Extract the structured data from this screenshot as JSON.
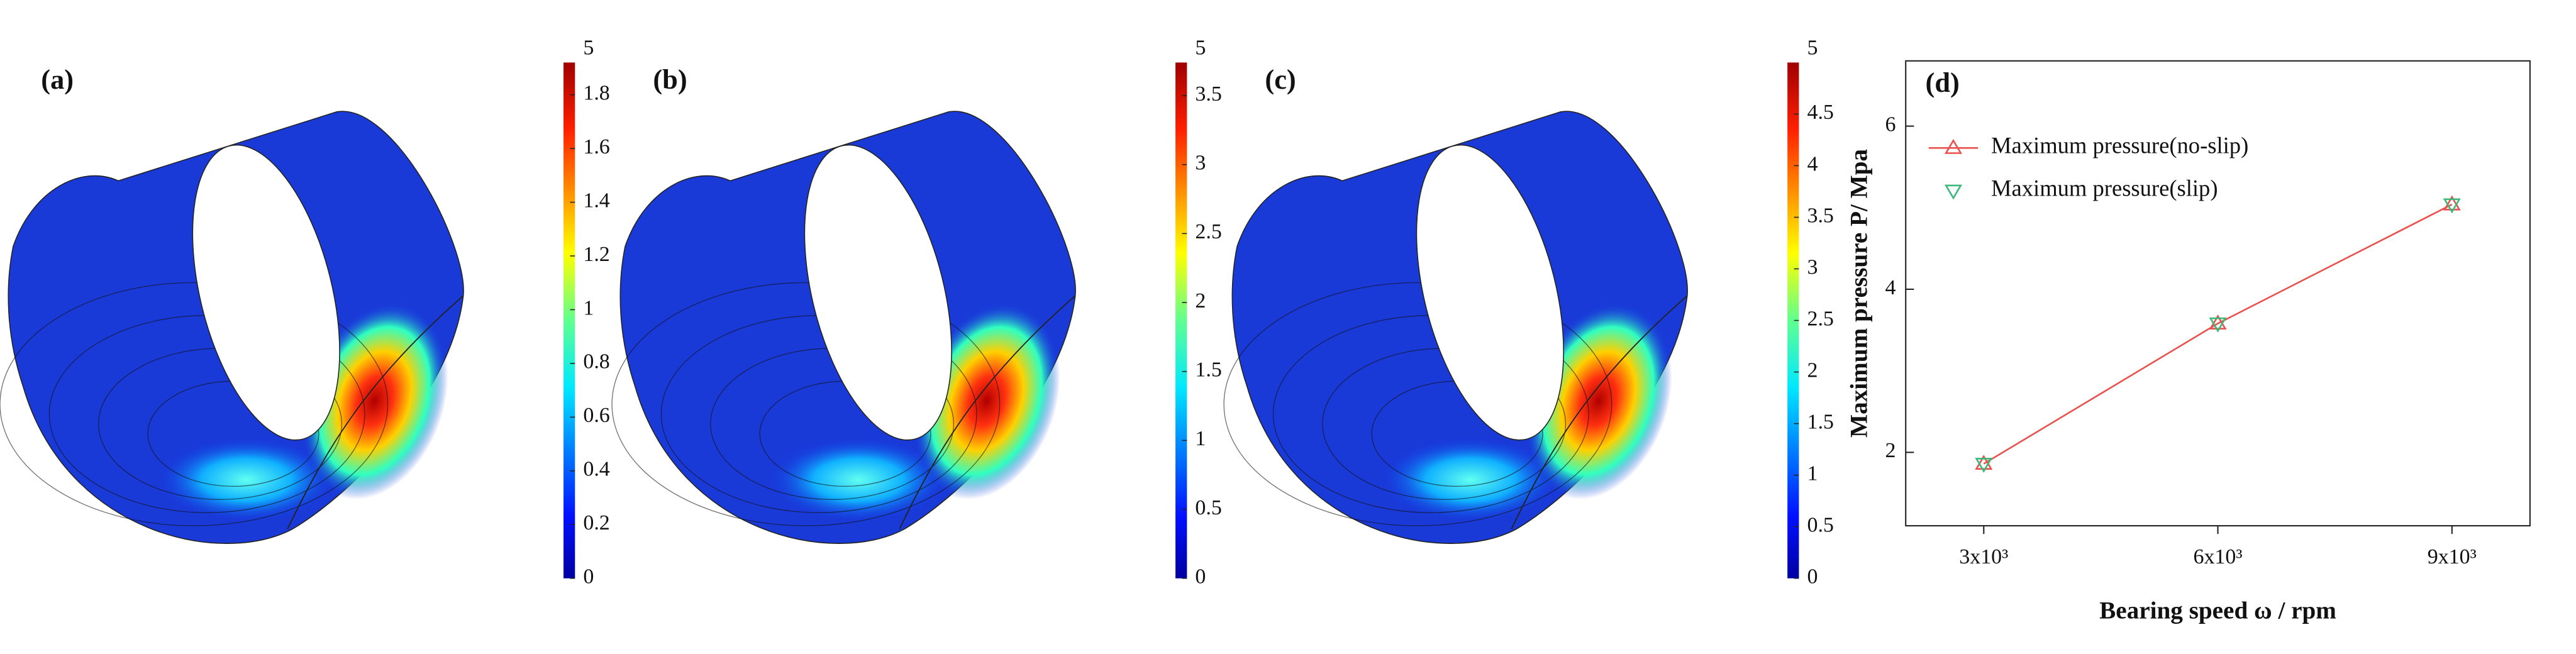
{
  "chart_data": [
    {
      "type": "contour",
      "panel_label": "(a)",
      "colorbar": {
        "clim": [
          0,
          1.92
        ],
        "ticks": [
          0,
          0.2,
          0.4,
          0.6,
          0.8,
          1,
          1.2,
          1.4,
          1.6,
          1.8
        ],
        "max_label": 5
      }
    },
    {
      "type": "contour",
      "panel_label": "(b)",
      "colorbar": {
        "clim": [
          0,
          3.74
        ],
        "ticks": [
          0,
          0.5,
          1,
          1.5,
          2,
          2.5,
          3,
          3.5
        ],
        "max_label": 5
      }
    },
    {
      "type": "contour",
      "panel_label": "(c)",
      "colorbar": {
        "clim": [
          0,
          5
        ],
        "ticks": [
          0,
          0.5,
          1,
          1.5,
          2,
          2.5,
          3,
          3.5,
          4,
          4.5
        ],
        "max_label": 5
      }
    },
    {
      "type": "line",
      "panel_label": "(d)",
      "xlabel": "Bearing speed ω / rpm",
      "ylabel": "Maximum pressure P/ Mpa",
      "x": [
        3000,
        6000,
        9000
      ],
      "series": [
        {
          "name": "Maximum pressure(no-slip)",
          "color": "#e8514d",
          "marker": "triangle-up",
          "line": true,
          "values": [
            1.86,
            3.58,
            5.04
          ]
        },
        {
          "name": "Maximum pressure(slip)",
          "color": "#3cb878",
          "marker": "triangle-down",
          "line": false,
          "values": [
            1.86,
            3.58,
            5.04
          ]
        }
      ],
      "xlim": [
        2000,
        10000
      ],
      "ylim": [
        1.1,
        6.8
      ],
      "xticks": [
        {
          "value": 3000,
          "label": "3x10³"
        },
        {
          "value": 6000,
          "label": "6x10³"
        },
        {
          "value": 9000,
          "label": "9x10³"
        }
      ],
      "yticks": [
        2,
        4,
        6
      ],
      "legend": "upper left"
    }
  ]
}
